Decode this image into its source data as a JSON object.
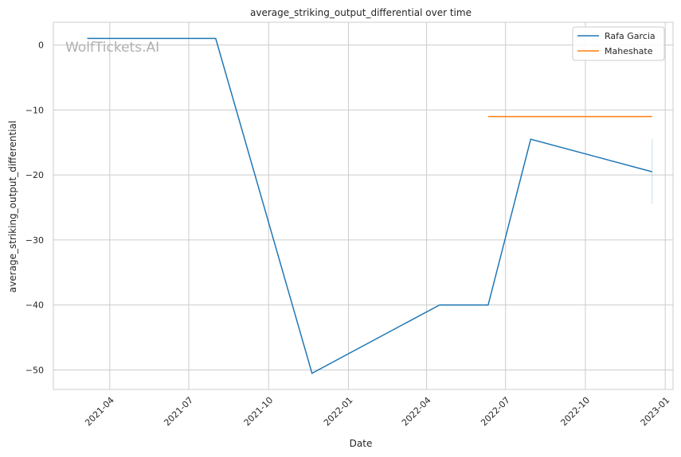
{
  "watermark": "WolfTickets.AI",
  "chart_data": {
    "type": "line",
    "title": "average_striking_output_differential over time",
    "xlabel": "Date",
    "ylabel": "average_striking_output_differential",
    "xlim": [
      "2021-01-26",
      "2023-01-10"
    ],
    "ylim": [
      -53,
      3.5
    ],
    "x_ticks": [
      "2021-04",
      "2021-07",
      "2021-10",
      "2022-01",
      "2022-04",
      "2022-07",
      "2022-10",
      "2023-01"
    ],
    "y_ticks": [
      0,
      -10,
      -20,
      -30,
      -40,
      -50
    ],
    "grid": true,
    "legend_position": "top-right",
    "series": [
      {
        "name": "Rafa Garcia",
        "color": "#1f77b4",
        "x": [
          "2021-03-06",
          "2021-08-01",
          "2021-11-20",
          "2022-04-16",
          "2022-06-11",
          "2022-07-30",
          "2022-12-17"
        ],
        "y": [
          1,
          1,
          -50.5,
          -40,
          -40,
          -14.5,
          -19.5
        ],
        "error_bar": {
          "x": "2022-12-17",
          "low": -24.5,
          "high": -14.5
        }
      },
      {
        "name": "Maheshate",
        "color": "#ff7f0e",
        "x": [
          "2022-06-11",
          "2022-12-17"
        ],
        "y": [
          -11,
          -11
        ]
      }
    ]
  }
}
